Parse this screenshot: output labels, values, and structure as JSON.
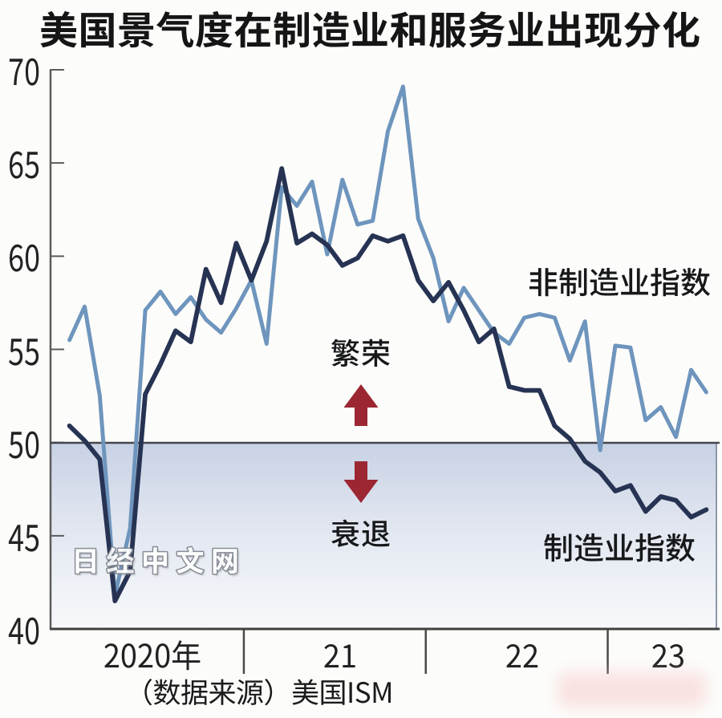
{
  "title": "美国景气度在制造业和服务业出现分化",
  "watermark": "日经中文网",
  "source_note": "（数据来源）美国ISM",
  "annotations": {
    "prosperity": "繁荣",
    "recession": "衰退"
  },
  "series_labels": {
    "non_manufacturing": "非制造业指数",
    "manufacturing": "制造业指数"
  },
  "colors": {
    "manufacturing_line": "#273353",
    "non_manufacturing_line": "#6e95bd",
    "arrow_red": "#9c2733",
    "reference_line": "#43464c",
    "axis": "#5c5c5c",
    "band_top": "#c7d1e4",
    "band_bottom": "#f7f8fa"
  },
  "chart_data": {
    "type": "line",
    "title": "美国景气度在制造业和服务业出现分化",
    "x_unit": "month",
    "x_start": "2020-01",
    "x_end": "2023-07",
    "ylim": [
      40,
      70
    ],
    "yticks": [
      70,
      65,
      60,
      55,
      50,
      45,
      40
    ],
    "reference_line": 50,
    "grid": false,
    "x_year_labels": [
      "2020年",
      "21",
      "22",
      "23"
    ],
    "x_year_start_month_index": [
      0,
      12,
      24,
      36
    ],
    "series": [
      {
        "name": "非制造业指数",
        "color": "#6e95bd",
        "values": [
          55.5,
          57.3,
          52.5,
          41.8,
          45.4,
          57.1,
          58.1,
          56.9,
          57.8,
          56.6,
          55.9,
          57.2,
          58.7,
          55.3,
          63.7,
          62.7,
          64.0,
          60.1,
          64.1,
          61.7,
          61.9,
          66.7,
          69.1,
          62.0,
          59.9,
          56.5,
          58.3,
          57.1,
          55.9,
          55.3,
          56.7,
          56.9,
          56.7,
          54.4,
          56.5,
          49.6,
          55.2,
          55.1,
          51.2,
          51.9,
          50.3,
          53.9,
          52.7
        ]
      },
      {
        "name": "制造业指数",
        "color": "#273353",
        "values": [
          50.9,
          50.1,
          49.1,
          41.5,
          43.1,
          52.6,
          54.2,
          56.0,
          55.4,
          59.3,
          57.5,
          60.7,
          58.7,
          60.8,
          64.7,
          60.7,
          61.2,
          60.6,
          59.5,
          59.9,
          61.1,
          60.8,
          61.1,
          58.7,
          57.6,
          58.6,
          57.1,
          55.4,
          56.1,
          53.0,
          52.8,
          52.8,
          50.9,
          50.2,
          49.0,
          48.4,
          47.4,
          47.7,
          46.3,
          47.1,
          46.9,
          46.0,
          46.4
        ]
      }
    ],
    "annotations": [
      "繁荣",
      "衰退"
    ],
    "source": "（数据来源）美国ISM"
  }
}
